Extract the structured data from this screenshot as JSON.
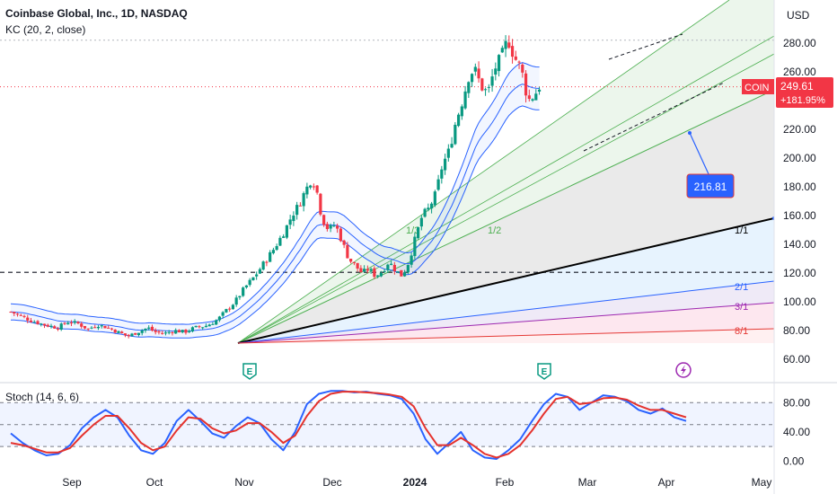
{
  "header": {
    "title": "Coinbase Global, Inc., 1D, NASDAQ",
    "indicator": "KC (20, 2, close)",
    "currency": "USD"
  },
  "price_badge": {
    "symbol": "COIN",
    "price": "249.61",
    "change": "+181.95%"
  },
  "callout": "216.81",
  "chart_data": [
    {
      "type": "candlestick",
      "title": "Coinbase Global, Inc., 1D, NASDAQ",
      "y_axis": {
        "ticks": [
          60,
          80,
          100,
          120,
          140,
          160,
          180,
          200,
          220,
          240,
          260,
          280
        ],
        "range": [
          55,
          300
        ],
        "labels": [
          "60.00",
          "80.00",
          "100.00",
          "120.00",
          "140.00",
          "160.00",
          "180.00",
          "200.00",
          "220.00",
          "240.00",
          "260.00",
          "280.00"
        ]
      },
      "x_axis": {
        "labels": [
          "Sep",
          "Oct",
          "Nov",
          "Dec",
          "2024",
          "Feb",
          "Mar",
          "Apr",
          "May"
        ]
      },
      "last_price": 249.61,
      "change_percent": 181.95,
      "price_path": [
        [
          0,
          93
        ],
        [
          0.015,
          90
        ],
        [
          0.03,
          87
        ],
        [
          0.05,
          84
        ],
        [
          0.07,
          82
        ],
        [
          0.085,
          86
        ],
        [
          0.1,
          85
        ],
        [
          0.115,
          81
        ],
        [
          0.13,
          84
        ],
        [
          0.145,
          82
        ],
        [
          0.16,
          79
        ],
        [
          0.175,
          76
        ],
        [
          0.19,
          79
        ],
        [
          0.205,
          82
        ],
        [
          0.215,
          79
        ],
        [
          0.23,
          78
        ],
        [
          0.245,
          80
        ],
        [
          0.26,
          79
        ],
        [
          0.275,
          82
        ],
        [
          0.29,
          83
        ],
        [
          0.3,
          85
        ],
        [
          0.31,
          88
        ],
        [
          0.32,
          93
        ],
        [
          0.335,
          100
        ],
        [
          0.35,
          110
        ],
        [
          0.365,
          118
        ],
        [
          0.38,
          128
        ],
        [
          0.395,
          138
        ],
        [
          0.41,
          150
        ],
        [
          0.42,
          160
        ],
        [
          0.43,
          167
        ],
        [
          0.44,
          177
        ],
        [
          0.45,
          186
        ],
        [
          0.457,
          178
        ],
        [
          0.465,
          158
        ],
        [
          0.475,
          150
        ],
        [
          0.485,
          154
        ],
        [
          0.495,
          142
        ],
        [
          0.505,
          130
        ],
        [
          0.515,
          125
        ],
        [
          0.525,
          120
        ],
        [
          0.535,
          123
        ],
        [
          0.545,
          118
        ],
        [
          0.555,
          121
        ],
        [
          0.565,
          128
        ],
        [
          0.575,
          122
        ],
        [
          0.585,
          118
        ],
        [
          0.595,
          128
        ],
        [
          0.605,
          145
        ],
        [
          0.615,
          160
        ],
        [
          0.625,
          165
        ],
        [
          0.635,
          175
        ],
        [
          0.645,
          195
        ],
        [
          0.655,
          205
        ],
        [
          0.665,
          225
        ],
        [
          0.675,
          240
        ],
        [
          0.685,
          258
        ],
        [
          0.693,
          262
        ],
        [
          0.703,
          250
        ],
        [
          0.713,
          245
        ],
        [
          0.723,
          262
        ],
        [
          0.733,
          270
        ],
        [
          0.743,
          283
        ],
        [
          0.753,
          270
        ],
        [
          0.763,
          262
        ],
        [
          0.773,
          240
        ],
        [
          0.783,
          244
        ],
        [
          0.79,
          250
        ]
      ],
      "keltner_channel": {
        "length": 20,
        "multiplier": 2,
        "source": "close"
      },
      "gann_fan_labels": [
        "1/3",
        "1/2",
        "1/1",
        "2/1",
        "3/1",
        "8/1"
      ],
      "horizontal_levels": [
        120,
        282
      ],
      "earnings_markers": [
        "E",
        "E"
      ]
    },
    {
      "type": "line",
      "title": "Stoch (14, 6, 6)",
      "y_axis": {
        "ticks": [
          0,
          40,
          80
        ],
        "labels": [
          "0.00",
          "40.00",
          "80.00"
        ],
        "range": [
          -10,
          110
        ]
      },
      "levels": [
        20,
        50,
        80
      ],
      "series": [
        {
          "color": "#2962ff",
          "values": [
            38,
            25,
            15,
            8,
            10,
            22,
            45,
            60,
            70,
            60,
            35,
            15,
            10,
            25,
            55,
            70,
            55,
            38,
            32,
            48,
            60,
            52,
            30,
            15,
            40,
            78,
            92,
            96,
            96,
            94,
            95,
            92,
            90,
            85,
            65,
            30,
            10,
            25,
            40,
            15,
            5,
            3,
            15,
            30,
            55,
            78,
            92,
            88,
            70,
            80,
            90,
            88,
            82,
            70,
            65,
            72,
            60,
            55
          ]
        },
        {
          "color": "#e5322d",
          "values": [
            25,
            22,
            17,
            12,
            12,
            18,
            35,
            50,
            62,
            62,
            45,
            25,
            15,
            20,
            42,
            60,
            58,
            45,
            38,
            42,
            52,
            52,
            40,
            25,
            35,
            62,
            82,
            92,
            95,
            95,
            94,
            93,
            91,
            88,
            75,
            45,
            22,
            22,
            32,
            22,
            10,
            5,
            10,
            22,
            42,
            65,
            85,
            88,
            78,
            80,
            86,
            87,
            84,
            76,
            70,
            70,
            65,
            60
          ]
        }
      ]
    }
  ],
  "colors": {
    "up": "#089981",
    "down": "#f23645",
    "kc": "#2962ff",
    "fan_green": "#4caf50",
    "accent_blue": "#2962ff",
    "badge_red": "#f23645"
  }
}
